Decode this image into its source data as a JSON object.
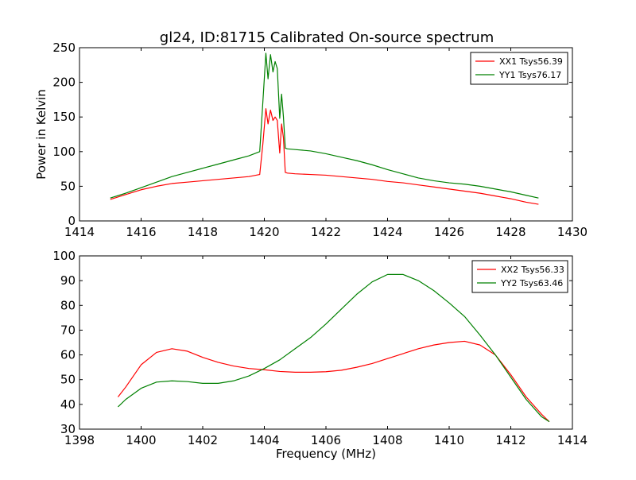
{
  "title": "gl24, ID:81715 Calibrated On-source spectrum",
  "colors": {
    "xx": "#ff0000",
    "yy": "#008000"
  },
  "chart_data": [
    {
      "type": "line",
      "ylabel": "Power in Kelvin",
      "xlabel": "",
      "xlim": [
        1414,
        1430
      ],
      "ylim": [
        0,
        250
      ],
      "xticks": [
        1414,
        1416,
        1418,
        1420,
        1422,
        1424,
        1426,
        1428,
        1430
      ],
      "yticks": [
        0,
        50,
        100,
        150,
        200,
        250
      ],
      "legend_position": "top-right",
      "series": [
        {
          "name": "XX1 Tsys56.39",
          "color": "#ff0000",
          "x": [
            1415.0,
            1415.5,
            1416.0,
            1416.5,
            1417.0,
            1417.5,
            1418.0,
            1418.5,
            1419.0,
            1419.5,
            1419.85,
            1419.95,
            1420.05,
            1420.12,
            1420.2,
            1420.28,
            1420.35,
            1420.42,
            1420.5,
            1420.56,
            1420.62,
            1420.68,
            1420.75,
            1421.0,
            1421.5,
            1422.0,
            1422.5,
            1423.0,
            1423.5,
            1424.0,
            1424.5,
            1425.0,
            1425.5,
            1426.0,
            1426.5,
            1427.0,
            1427.5,
            1428.0,
            1428.5,
            1428.9
          ],
          "y": [
            31,
            38,
            45,
            50,
            54,
            56,
            58,
            60,
            62,
            64,
            67,
            110,
            162,
            140,
            160,
            145,
            150,
            145,
            98,
            140,
            120,
            70,
            69,
            68,
            67,
            66,
            64,
            62,
            60,
            57,
            55,
            52,
            49,
            46,
            43,
            40,
            36,
            32,
            27,
            24
          ]
        },
        {
          "name": "YY1 Tsys76.17",
          "color": "#008000",
          "x": [
            1415.0,
            1415.5,
            1416.0,
            1416.5,
            1417.0,
            1417.5,
            1418.0,
            1418.5,
            1419.0,
            1419.5,
            1419.85,
            1419.95,
            1420.05,
            1420.12,
            1420.2,
            1420.28,
            1420.35,
            1420.42,
            1420.5,
            1420.56,
            1420.62,
            1420.68,
            1420.75,
            1421.0,
            1421.5,
            1422.0,
            1422.5,
            1423.0,
            1423.5,
            1424.0,
            1424.5,
            1425.0,
            1425.5,
            1426.0,
            1426.5,
            1427.0,
            1427.5,
            1428.0,
            1428.5,
            1428.9
          ],
          "y": [
            33,
            40,
            48,
            56,
            64,
            70,
            76,
            82,
            88,
            94,
            100,
            170,
            242,
            205,
            240,
            215,
            230,
            220,
            148,
            183,
            150,
            105,
            104,
            103,
            101,
            97,
            92,
            87,
            81,
            74,
            68,
            62,
            58,
            55,
            53,
            50,
            46,
            42,
            37,
            33
          ]
        }
      ]
    },
    {
      "type": "line",
      "ylabel": "",
      "xlabel": "Frequency (MHz)",
      "xlim": [
        1398,
        1414
      ],
      "ylim": [
        30,
        100
      ],
      "xticks": [
        1398,
        1400,
        1402,
        1404,
        1406,
        1408,
        1410,
        1412,
        1414
      ],
      "yticks": [
        30,
        40,
        50,
        60,
        70,
        80,
        90,
        100
      ],
      "legend_position": "top-right",
      "series": [
        {
          "name": "XX2 Tsys56.33",
          "color": "#ff0000",
          "x": [
            1399.25,
            1399.5,
            1400.0,
            1400.5,
            1401.0,
            1401.5,
            1402.0,
            1402.5,
            1403.0,
            1403.5,
            1404.0,
            1404.5,
            1405.0,
            1405.5,
            1406.0,
            1406.5,
            1407.0,
            1407.5,
            1408.0,
            1408.5,
            1409.0,
            1409.5,
            1410.0,
            1410.5,
            1411.0,
            1411.5,
            1412.0,
            1412.5,
            1413.0,
            1413.25
          ],
          "y": [
            43,
            47,
            56,
            61,
            62.5,
            61.5,
            59,
            57,
            55.5,
            54.5,
            54,
            53.3,
            53,
            53,
            53.2,
            53.8,
            55,
            56.5,
            58.5,
            60.5,
            62.5,
            64,
            65,
            65.5,
            64,
            60,
            52,
            43,
            36,
            33
          ]
        },
        {
          "name": "YY2 Tsys63.46",
          "color": "#008000",
          "x": [
            1399.25,
            1399.5,
            1400.0,
            1400.5,
            1401.0,
            1401.5,
            1402.0,
            1402.5,
            1403.0,
            1403.5,
            1404.0,
            1404.5,
            1405.0,
            1405.5,
            1406.0,
            1406.5,
            1407.0,
            1407.5,
            1408.0,
            1408.5,
            1409.0,
            1409.5,
            1410.0,
            1410.5,
            1411.0,
            1411.5,
            1412.0,
            1412.5,
            1413.0,
            1413.25
          ],
          "y": [
            39,
            42,
            46.5,
            49,
            49.5,
            49.2,
            48.5,
            48.5,
            49.5,
            51.5,
            54.5,
            58,
            62.5,
            67,
            72.5,
            78.5,
            84.5,
            89.5,
            92.5,
            92.5,
            90,
            86,
            81,
            75.5,
            68,
            60,
            51,
            42,
            35,
            33
          ]
        }
      ]
    }
  ]
}
